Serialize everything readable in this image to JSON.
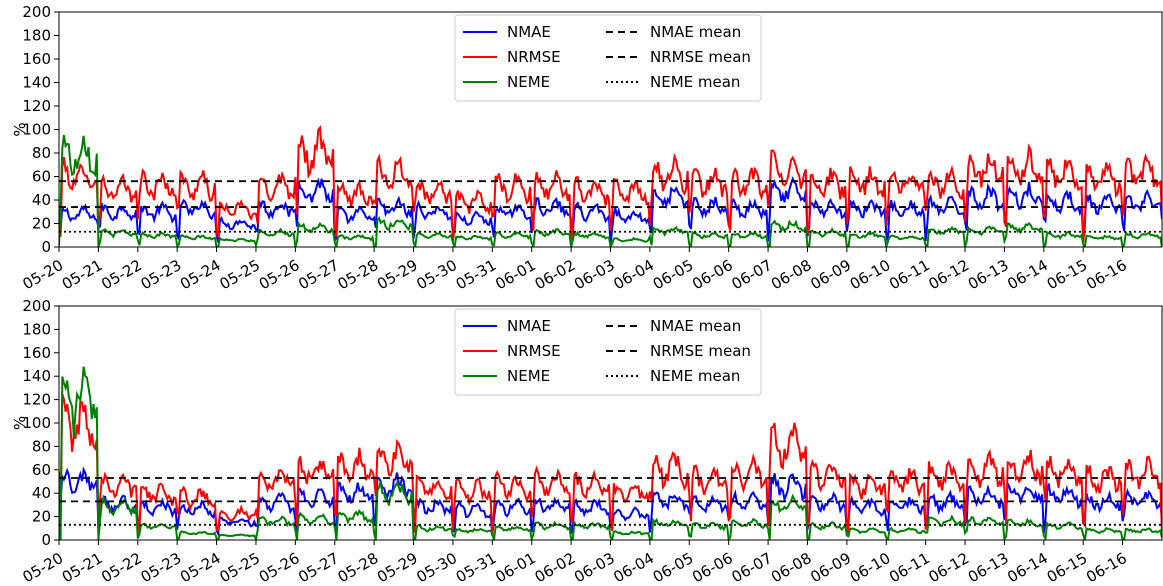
{
  "chart_data": [
    {
      "type": "line",
      "ylabel": "%",
      "ylim": [
        0,
        200
      ],
      "yticks": [
        0,
        20,
        40,
        60,
        80,
        100,
        120,
        140,
        160,
        180,
        200
      ],
      "x_tick_labels": [
        "05-20",
        "05-21",
        "05-22",
        "05-23",
        "05-24",
        "05-25",
        "05-26",
        "05-27",
        "05-28",
        "05-29",
        "05-30",
        "05-31",
        "06-01",
        "06-02",
        "06-03",
        "06-04",
        "06-05",
        "06-06",
        "06-07",
        "06-08",
        "06-09",
        "06-10",
        "06-11",
        "06-12",
        "06-13",
        "06-14",
        "06-15",
        "06-16"
      ],
      "x_range_days": [
        0,
        28
      ],
      "grid": false,
      "legend_position": "top-center",
      "series": [
        {
          "name": "NMAE",
          "color": "#0000ff",
          "style": "solid",
          "daily_level": [
            28,
            30,
            30,
            33,
            20,
            33,
            48,
            27,
            33,
            30,
            24,
            30,
            33,
            30,
            26,
            42,
            34,
            32,
            46,
            33,
            33,
            32,
            34,
            42,
            44,
            38,
            36,
            38
          ]
        },
        {
          "name": "NRMSE",
          "color": "#ff0000",
          "style": "solid",
          "daily_level": [
            60,
            48,
            52,
            52,
            32,
            52,
            80,
            45,
            62,
            48,
            38,
            50,
            52,
            48,
            46,
            62,
            55,
            54,
            66,
            54,
            55,
            55,
            55,
            66,
            68,
            62,
            58,
            62
          ]
        },
        {
          "name": "NEME",
          "color": "#008000",
          "style": "solid",
          "daily_level": [
            80,
            12,
            10,
            8,
            6,
            12,
            16,
            8,
            20,
            10,
            8,
            10,
            12,
            10,
            6,
            14,
            10,
            10,
            18,
            12,
            10,
            8,
            14,
            14,
            16,
            10,
            8,
            10
          ]
        },
        {
          "name": "NMAE mean",
          "color": "#000000",
          "style": "dashed",
          "value": 34
        },
        {
          "name": "NRMSE mean",
          "color": "#000000",
          "style": "dashed",
          "value": 56
        },
        {
          "name": "NEME mean",
          "color": "#000000",
          "style": "dotted",
          "value": 13
        }
      ]
    },
    {
      "type": "line",
      "ylabel": "%",
      "ylim": [
        0,
        200
      ],
      "yticks": [
        0,
        20,
        40,
        60,
        80,
        100,
        120,
        140,
        160,
        180,
        200
      ],
      "x_tick_labels": [
        "05-20",
        "05-21",
        "05-22",
        "05-23",
        "05-24",
        "05-25",
        "05-26",
        "05-27",
        "05-28",
        "05-29",
        "05-30",
        "05-31",
        "06-01",
        "06-02",
        "06-03",
        "06-04",
        "06-05",
        "06-06",
        "06-07",
        "06-08",
        "06-09",
        "06-10",
        "06-11",
        "06-12",
        "06-13",
        "06-14",
        "06-15",
        "06-16"
      ],
      "x_range_days": [
        0,
        28
      ],
      "grid": false,
      "legend_position": "top-center",
      "series": [
        {
          "name": "NMAE",
          "color": "#0000ff",
          "style": "solid",
          "daily_level": [
            50,
            30,
            28,
            26,
            16,
            32,
            36,
            40,
            46,
            28,
            26,
            28,
            30,
            28,
            22,
            34,
            30,
            32,
            46,
            32,
            28,
            30,
            32,
            36,
            40,
            38,
            32,
            34
          ]
        },
        {
          "name": "NRMSE",
          "color": "#ff0000",
          "style": "solid",
          "daily_level": [
            100,
            48,
            40,
            36,
            22,
            52,
            58,
            62,
            68,
            46,
            42,
            46,
            48,
            46,
            40,
            60,
            52,
            56,
            80,
            56,
            48,
            50,
            54,
            60,
            62,
            60,
            52,
            58
          ]
        },
        {
          "name": "NEME",
          "color": "#008000",
          "style": "solid",
          "daily_level": [
            120,
            30,
            12,
            6,
            4,
            16,
            18,
            20,
            40,
            10,
            8,
            10,
            12,
            12,
            6,
            14,
            12,
            14,
            30,
            12,
            8,
            8,
            16,
            16,
            14,
            12,
            8,
            8
          ]
        },
        {
          "name": "NMAE mean",
          "color": "#000000",
          "style": "dashed",
          "value": 33
        },
        {
          "name": "NRMSE mean",
          "color": "#000000",
          "style": "dashed",
          "value": 53
        },
        {
          "name": "NEME mean",
          "color": "#000000",
          "style": "dotted",
          "value": 13
        }
      ]
    }
  ]
}
